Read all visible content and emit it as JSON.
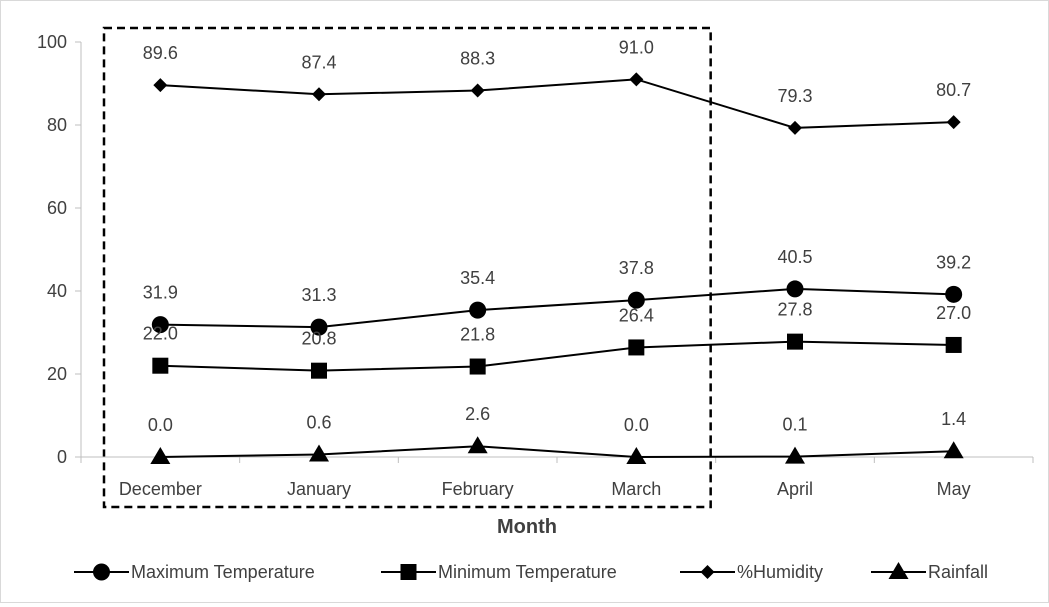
{
  "chart_data": {
    "type": "line",
    "title": "",
    "xlabel": "Month",
    "ylabel": "",
    "categories": [
      "December",
      "January",
      "February",
      "March",
      "April",
      "May"
    ],
    "ylim": [
      0,
      100
    ],
    "yticks": [
      "0",
      "20",
      "40",
      "60",
      "80",
      "100"
    ],
    "grid": false,
    "legend_position": "bottom",
    "highlight_box": {
      "style": "dashed",
      "from_category": "December",
      "to_category": "March"
    },
    "series": [
      {
        "name": "Maximum Temperature",
        "marker": "circle",
        "values": [
          31.9,
          31.3,
          35.4,
          37.8,
          40.5,
          39.2
        ],
        "labels": [
          "31.9",
          "31.3",
          "35.4",
          "37.8",
          "40.5",
          "39.2"
        ]
      },
      {
        "name": "Minimum Temperature",
        "marker": "square",
        "values": [
          22.0,
          20.8,
          21.8,
          26.4,
          27.8,
          27.0
        ],
        "labels": [
          "22.0",
          "20.8",
          "21.8",
          "26.4",
          "27.8",
          "27.0"
        ]
      },
      {
        "name": "%Humidity",
        "marker": "diamond",
        "values": [
          89.6,
          87.4,
          88.3,
          91.0,
          79.3,
          80.7
        ],
        "labels": [
          "89.6",
          "87.4",
          "88.3",
          "91.0",
          "79.3",
          "80.7"
        ]
      },
      {
        "name": "Rainfall",
        "marker": "triangle",
        "values": [
          0.0,
          0.6,
          2.6,
          0.0,
          0.1,
          1.4
        ],
        "labels": [
          "0.0",
          "0.6",
          "2.6",
          "0.0",
          "0.1",
          "1.4"
        ]
      }
    ],
    "colors": {
      "line": "#000000",
      "text": "#404040",
      "axis": "#bfbfbf"
    }
  }
}
